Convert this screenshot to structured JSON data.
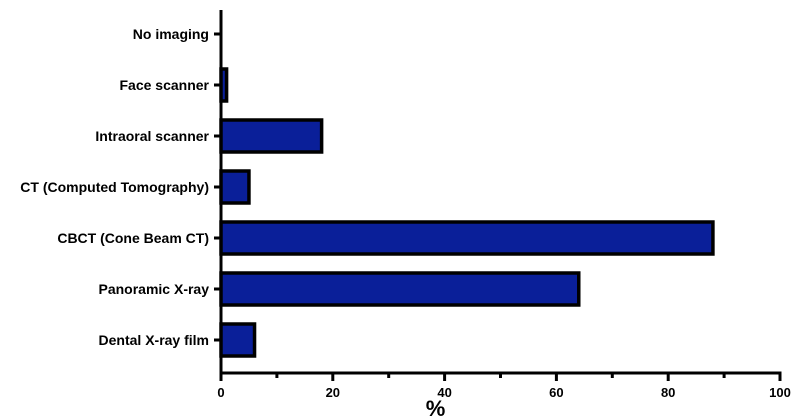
{
  "chart_data": {
    "type": "bar",
    "orientation": "horizontal",
    "categories": [
      "No imaging",
      "Face scanner",
      "Intraoral scanner",
      "CT (Computed Tomography)",
      "CBCT (Cone Beam CT)",
      "Panoramic X-ray",
      "Dental X-ray film"
    ],
    "values": [
      0,
      1,
      18,
      5,
      88,
      64,
      6
    ],
    "xlabel": "%",
    "ylabel": "",
    "xlim": [
      0,
      100
    ],
    "x_ticks": [
      "0",
      "20",
      "40",
      "60",
      "80",
      "100"
    ],
    "grid": false,
    "bar_color": "#0a1f99",
    "bar_edge_color": "#000000"
  }
}
